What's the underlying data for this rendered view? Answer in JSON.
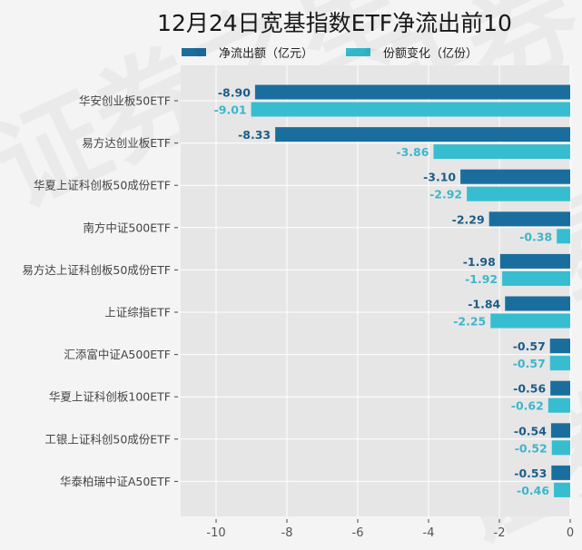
{
  "watermark": "证券之星",
  "chart_data": {
    "type": "bar",
    "orientation": "horizontal",
    "title": "12月24日宽基指数ETF净流出前10",
    "xlabel": "",
    "ylabel": "",
    "xlim": [
      -11,
      0
    ],
    "x_ticks": [
      -10,
      -8,
      -6,
      -4,
      -2,
      0
    ],
    "grid": true,
    "legend_position": "top",
    "categories": [
      "华安创业板50ETF",
      "易方达创业板ETF",
      "华夏上证科创板50成份ETF",
      "南方中证500ETF",
      "易方达上证科创板50成份ETF",
      "上证综指ETF",
      "汇添富中证A500ETF",
      "华夏上证科创板100ETF",
      "工银上证科创50成份ETF",
      "华泰柏瑞中证A50ETF"
    ],
    "series": [
      {
        "name": "净流出额（亿元）",
        "color": "#1a6e9e",
        "label_color": "#1d5c88",
        "values": [
          -8.9,
          -8.33,
          -3.1,
          -2.29,
          -1.98,
          -1.84,
          -0.57,
          -0.56,
          -0.54,
          -0.53
        ],
        "labels": [
          "-8.90",
          "-8.33",
          "-3.10",
          "-2.29",
          "-1.98",
          "-1.84",
          "-0.57",
          "-0.56",
          "-0.54",
          "-0.53"
        ]
      },
      {
        "name": "份额变化（亿份）",
        "color": "#36bed0",
        "label_color": "#3db6cb",
        "values": [
          -9.01,
          -3.86,
          -2.92,
          -0.38,
          -1.92,
          -2.25,
          -0.57,
          -0.62,
          -0.52,
          -0.46
        ],
        "labels": [
          "-9.01",
          "-3.86",
          "-2.92",
          "-0.38",
          "-1.92",
          "-2.25",
          "-0.57",
          "-0.62",
          "-0.52",
          "-0.46"
        ]
      }
    ]
  }
}
